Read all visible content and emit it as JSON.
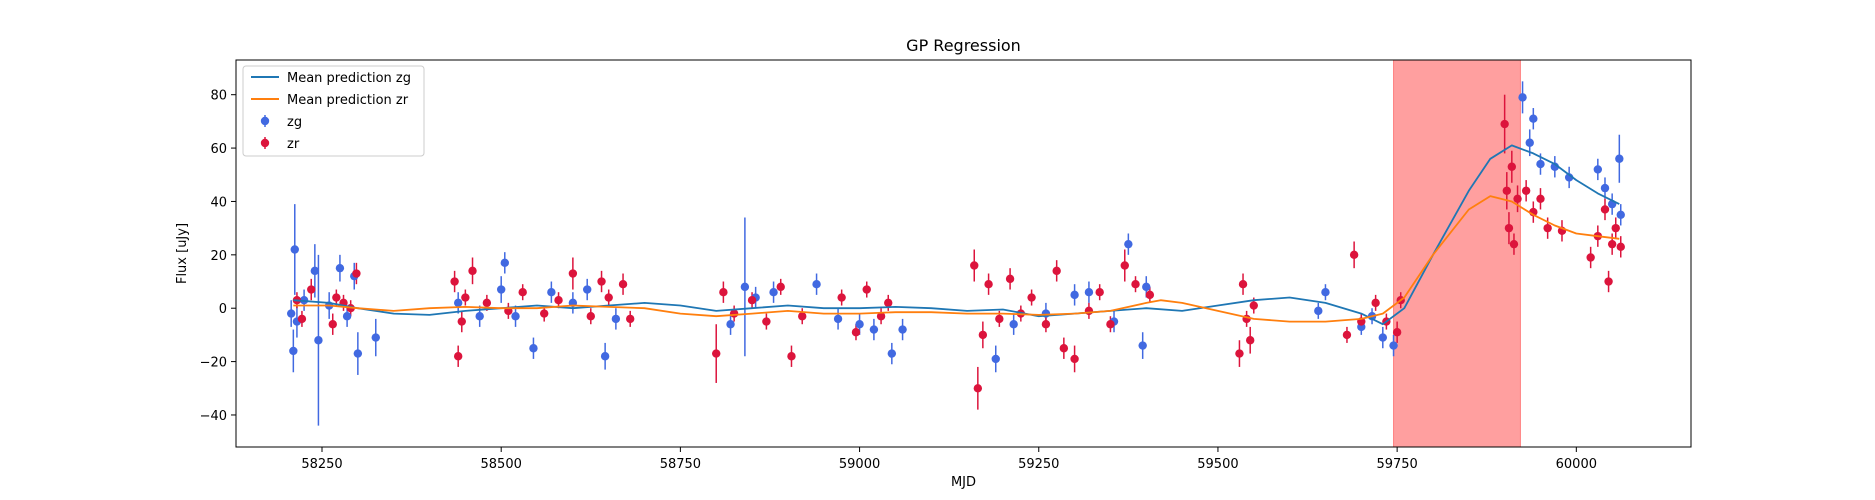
{
  "chart_data": {
    "type": "scatter",
    "title": "GP Regression",
    "xlabel": "MJD",
    "ylabel": "Flux [uJy]",
    "xlim": [
      58130,
      60160
    ],
    "ylim": [
      -52,
      93
    ],
    "xticks": [
      58250,
      58500,
      58750,
      59000,
      59250,
      59500,
      59750,
      60000
    ],
    "yticks": [
      -40,
      -20,
      0,
      20,
      40,
      60,
      80
    ],
    "grid": false,
    "legend_position": "top-left",
    "shaded_region": {
      "x0": 59745,
      "x1": 59922,
      "color": "#ff9f9f"
    },
    "lines": [
      {
        "name": "Mean prediction zg",
        "color": "#1f77b4",
        "x": [
          58210,
          58260,
          58300,
          58350,
          58400,
          58450,
          58500,
          58550,
          58600,
          58650,
          58700,
          58750,
          58800,
          58850,
          58900,
          58950,
          59000,
          59050,
          59100,
          59150,
          59200,
          59250,
          59300,
          59350,
          59400,
          59450,
          59500,
          59550,
          59600,
          59650,
          59700,
          59730,
          59760,
          59800,
          59850,
          59880,
          59910,
          59940,
          59970,
          60000,
          60030,
          60060
        ],
        "y": [
          3,
          2,
          0,
          -2,
          -2.5,
          -1,
          0,
          1,
          0,
          1,
          2,
          1,
          -1,
          0,
          1,
          0,
          0,
          0.5,
          0,
          -1,
          -0.5,
          -3,
          -2,
          -1,
          0,
          -1,
          1,
          3,
          4,
          2,
          -2,
          -6,
          0,
          20,
          44,
          56,
          61,
          58,
          54,
          48,
          43,
          39
        ]
      },
      {
        "name": "Mean prediction zr",
        "color": "#ff7f0e",
        "x": [
          58210,
          58260,
          58300,
          58350,
          58400,
          58450,
          58500,
          58550,
          58600,
          58650,
          58700,
          58750,
          58800,
          58850,
          58900,
          58950,
          59000,
          59050,
          59100,
          59150,
          59200,
          59250,
          59300,
          59350,
          59400,
          59420,
          59450,
          59500,
          59550,
          59600,
          59650,
          59700,
          59730,
          59760,
          59800,
          59850,
          59880,
          59910,
          59940,
          59970,
          60000,
          60030,
          60060
        ],
        "y": [
          1,
          1,
          0,
          -1,
          0,
          0.5,
          0,
          0,
          1,
          0.5,
          0,
          -2,
          -3,
          -2,
          -1,
          -2,
          -2,
          -1.5,
          -1.5,
          -2,
          -2,
          -2.5,
          -2,
          -1,
          2,
          3,
          2,
          -1,
          -4,
          -5,
          -5,
          -4,
          -2,
          4,
          20,
          37,
          42,
          40,
          35,
          31,
          28,
          27,
          26
        ]
      }
    ],
    "series": [
      {
        "name": "zg",
        "color": "#4169e1",
        "points": [
          {
            "x": 58207,
            "y": -2,
            "e": 5
          },
          {
            "x": 58210,
            "y": -16,
            "e": 8
          },
          {
            "x": 58212,
            "y": 22,
            "e": 17
          },
          {
            "x": 58215,
            "y": -5,
            "e": 6
          },
          {
            "x": 58225,
            "y": 3,
            "e": 4
          },
          {
            "x": 58240,
            "y": 14,
            "e": 10
          },
          {
            "x": 58245,
            "y": -12,
            "e": 32
          },
          {
            "x": 58260,
            "y": 1,
            "e": 5
          },
          {
            "x": 58275,
            "y": 15,
            "e": 5
          },
          {
            "x": 58285,
            "y": -3,
            "e": 4
          },
          {
            "x": 58295,
            "y": 12,
            "e": 5
          },
          {
            "x": 58300,
            "y": -17,
            "e": 8
          },
          {
            "x": 58325,
            "y": -11,
            "e": 7
          },
          {
            "x": 58440,
            "y": 2,
            "e": 4
          },
          {
            "x": 58470,
            "y": -3,
            "e": 4
          },
          {
            "x": 58500,
            "y": 7,
            "e": 5
          },
          {
            "x": 58505,
            "y": 17,
            "e": 4
          },
          {
            "x": 58520,
            "y": -3,
            "e": 4
          },
          {
            "x": 58545,
            "y": -15,
            "e": 4
          },
          {
            "x": 58570,
            "y": 6,
            "e": 4
          },
          {
            "x": 58600,
            "y": 2,
            "e": 4
          },
          {
            "x": 58620,
            "y": 7,
            "e": 4
          },
          {
            "x": 58645,
            "y": -18,
            "e": 5
          },
          {
            "x": 58660,
            "y": -4,
            "e": 4
          },
          {
            "x": 58820,
            "y": -6,
            "e": 4
          },
          {
            "x": 58840,
            "y": 8,
            "e": 26
          },
          {
            "x": 58855,
            "y": 4,
            "e": 4
          },
          {
            "x": 58880,
            "y": 6,
            "e": 4
          },
          {
            "x": 58940,
            "y": 9,
            "e": 4
          },
          {
            "x": 58970,
            "y": -4,
            "e": 4
          },
          {
            "x": 59000,
            "y": -6,
            "e": 4
          },
          {
            "x": 59020,
            "y": -8,
            "e": 4
          },
          {
            "x": 59045,
            "y": -17,
            "e": 4
          },
          {
            "x": 59060,
            "y": -8,
            "e": 4
          },
          {
            "x": 59190,
            "y": -19,
            "e": 5
          },
          {
            "x": 59215,
            "y": -6,
            "e": 4
          },
          {
            "x": 59260,
            "y": -2,
            "e": 4
          },
          {
            "x": 59300,
            "y": 5,
            "e": 4
          },
          {
            "x": 59320,
            "y": 6,
            "e": 4
          },
          {
            "x": 59355,
            "y": -5,
            "e": 4
          },
          {
            "x": 59375,
            "y": 24,
            "e": 4
          },
          {
            "x": 59395,
            "y": -14,
            "e": 5
          },
          {
            "x": 59400,
            "y": 8,
            "e": 4
          },
          {
            "x": 59640,
            "y": -1,
            "e": 3
          },
          {
            "x": 59650,
            "y": 6,
            "e": 3
          },
          {
            "x": 59700,
            "y": -7,
            "e": 3
          },
          {
            "x": 59715,
            "y": -3,
            "e": 3
          },
          {
            "x": 59730,
            "y": -11,
            "e": 4
          },
          {
            "x": 59745,
            "y": -14,
            "e": 4
          },
          {
            "x": 59925,
            "y": 79,
            "e": 6
          },
          {
            "x": 59935,
            "y": 62,
            "e": 5
          },
          {
            "x": 59940,
            "y": 71,
            "e": 4
          },
          {
            "x": 59950,
            "y": 54,
            "e": 4
          },
          {
            "x": 59970,
            "y": 53,
            "e": 4
          },
          {
            "x": 59990,
            "y": 49,
            "e": 4
          },
          {
            "x": 60030,
            "y": 52,
            "e": 4
          },
          {
            "x": 60040,
            "y": 45,
            "e": 4
          },
          {
            "x": 60050,
            "y": 39,
            "e": 4
          },
          {
            "x": 60060,
            "y": 56,
            "e": 9
          },
          {
            "x": 60062,
            "y": 35,
            "e": 4
          }
        ]
      },
      {
        "name": "zr",
        "color": "#dc143c",
        "points": [
          {
            "x": 58215,
            "y": 3,
            "e": 3
          },
          {
            "x": 58222,
            "y": -4,
            "e": 3
          },
          {
            "x": 58235,
            "y": 7,
            "e": 4
          },
          {
            "x": 58265,
            "y": -6,
            "e": 4
          },
          {
            "x": 58270,
            "y": 4,
            "e": 3
          },
          {
            "x": 58280,
            "y": 2,
            "e": 3
          },
          {
            "x": 58290,
            "y": 0,
            "e": 3
          },
          {
            "x": 58298,
            "y": 13,
            "e": 4
          },
          {
            "x": 58435,
            "y": 10,
            "e": 4
          },
          {
            "x": 58440,
            "y": -18,
            "e": 4
          },
          {
            "x": 58445,
            "y": -5,
            "e": 4
          },
          {
            "x": 58450,
            "y": 4,
            "e": 3
          },
          {
            "x": 58460,
            "y": 14,
            "e": 5
          },
          {
            "x": 58480,
            "y": 2,
            "e": 3
          },
          {
            "x": 58510,
            "y": -1,
            "e": 3
          },
          {
            "x": 58530,
            "y": 6,
            "e": 3
          },
          {
            "x": 58560,
            "y": -2,
            "e": 3
          },
          {
            "x": 58580,
            "y": 3,
            "e": 3
          },
          {
            "x": 58600,
            "y": 13,
            "e": 6
          },
          {
            "x": 58625,
            "y": -3,
            "e": 3
          },
          {
            "x": 58640,
            "y": 10,
            "e": 4
          },
          {
            "x": 58650,
            "y": 4,
            "e": 3
          },
          {
            "x": 58670,
            "y": 9,
            "e": 4
          },
          {
            "x": 58680,
            "y": -4,
            "e": 3
          },
          {
            "x": 58800,
            "y": -17,
            "e": 11
          },
          {
            "x": 58810,
            "y": 6,
            "e": 4
          },
          {
            "x": 58825,
            "y": -2,
            "e": 3
          },
          {
            "x": 58850,
            "y": 3,
            "e": 3
          },
          {
            "x": 58870,
            "y": -5,
            "e": 3
          },
          {
            "x": 58890,
            "y": 8,
            "e": 3
          },
          {
            "x": 58905,
            "y": -18,
            "e": 4
          },
          {
            "x": 58920,
            "y": -3,
            "e": 3
          },
          {
            "x": 58975,
            "y": 4,
            "e": 3
          },
          {
            "x": 58995,
            "y": -9,
            "e": 3
          },
          {
            "x": 59010,
            "y": 7,
            "e": 3
          },
          {
            "x": 59030,
            "y": -3,
            "e": 3
          },
          {
            "x": 59040,
            "y": 2,
            "e": 3
          },
          {
            "x": 59160,
            "y": 16,
            "e": 6
          },
          {
            "x": 59165,
            "y": -30,
            "e": 8
          },
          {
            "x": 59172,
            "y": -10,
            "e": 5
          },
          {
            "x": 59180,
            "y": 9,
            "e": 4
          },
          {
            "x": 59195,
            "y": -4,
            "e": 3
          },
          {
            "x": 59210,
            "y": 11,
            "e": 4
          },
          {
            "x": 59225,
            "y": -2,
            "e": 3
          },
          {
            "x": 59240,
            "y": 4,
            "e": 3
          },
          {
            "x": 59260,
            "y": -6,
            "e": 3
          },
          {
            "x": 59275,
            "y": 14,
            "e": 4
          },
          {
            "x": 59285,
            "y": -15,
            "e": 4
          },
          {
            "x": 59300,
            "y": -19,
            "e": 5
          },
          {
            "x": 59320,
            "y": -1,
            "e": 3
          },
          {
            "x": 59335,
            "y": 6,
            "e": 3
          },
          {
            "x": 59350,
            "y": -6,
            "e": 3
          },
          {
            "x": 59370,
            "y": 16,
            "e": 6
          },
          {
            "x": 59385,
            "y": 9,
            "e": 3
          },
          {
            "x": 59405,
            "y": 5,
            "e": 3
          },
          {
            "x": 59530,
            "y": -17,
            "e": 5
          },
          {
            "x": 59535,
            "y": 9,
            "e": 4
          },
          {
            "x": 59540,
            "y": -4,
            "e": 3
          },
          {
            "x": 59545,
            "y": -12,
            "e": 5
          },
          {
            "x": 59550,
            "y": 1,
            "e": 3
          },
          {
            "x": 59680,
            "y": -10,
            "e": 3
          },
          {
            "x": 59690,
            "y": 20,
            "e": 5
          },
          {
            "x": 59700,
            "y": -5,
            "e": 3
          },
          {
            "x": 59720,
            "y": 2,
            "e": 3
          },
          {
            "x": 59735,
            "y": -5,
            "e": 3
          },
          {
            "x": 59750,
            "y": -9,
            "e": 4
          },
          {
            "x": 59755,
            "y": 3,
            "e": 3
          },
          {
            "x": 59900,
            "y": 69,
            "e": 11
          },
          {
            "x": 59903,
            "y": 44,
            "e": 7
          },
          {
            "x": 59906,
            "y": 30,
            "e": 6
          },
          {
            "x": 59910,
            "y": 53,
            "e": 6
          },
          {
            "x": 59913,
            "y": 24,
            "e": 4
          },
          {
            "x": 59918,
            "y": 41,
            "e": 5
          },
          {
            "x": 59930,
            "y": 44,
            "e": 4
          },
          {
            "x": 59940,
            "y": 36,
            "e": 4
          },
          {
            "x": 59950,
            "y": 41,
            "e": 4
          },
          {
            "x": 59960,
            "y": 30,
            "e": 4
          },
          {
            "x": 59980,
            "y": 29,
            "e": 4
          },
          {
            "x": 60020,
            "y": 19,
            "e": 4
          },
          {
            "x": 60030,
            "y": 27,
            "e": 4
          },
          {
            "x": 60040,
            "y": 37,
            "e": 4
          },
          {
            "x": 60045,
            "y": 10,
            "e": 4
          },
          {
            "x": 60050,
            "y": 24,
            "e": 4
          },
          {
            "x": 60055,
            "y": 30,
            "e": 4
          },
          {
            "x": 60062,
            "y": 23,
            "e": 4
          }
        ]
      }
    ]
  }
}
